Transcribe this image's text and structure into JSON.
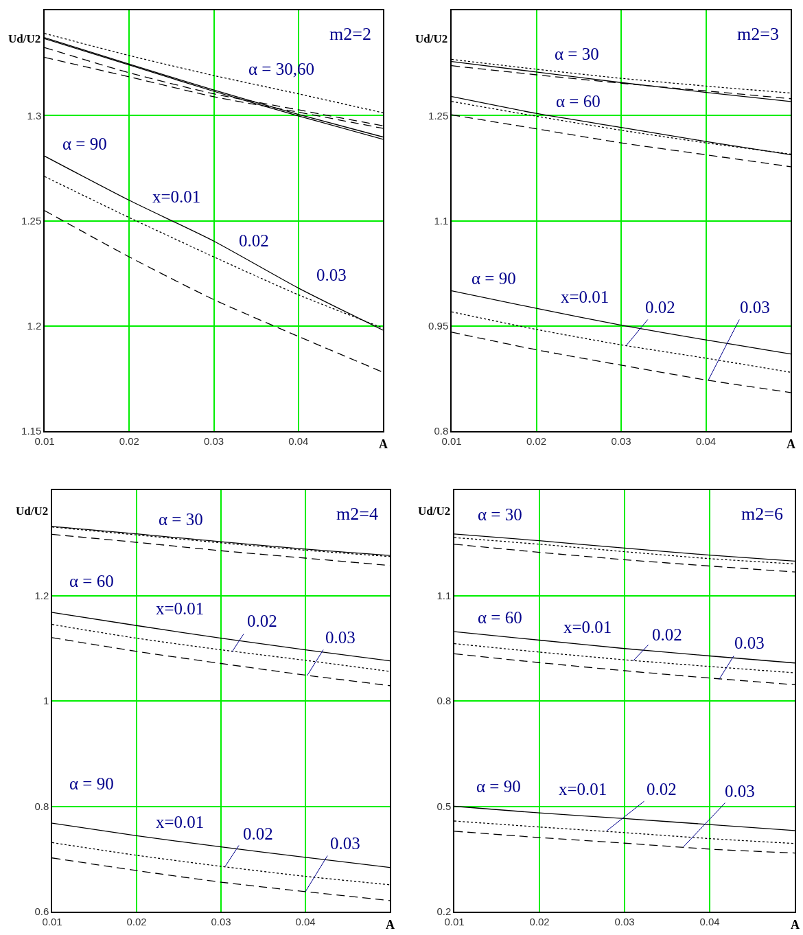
{
  "chart_data": [
    {
      "type": "line",
      "title": "m2=2",
      "xlabel": "A",
      "ylabel": "Ud/U2",
      "x": [
        0.01,
        0.02,
        0.03,
        0.04,
        0.05
      ],
      "xlim": [
        0.01,
        0.05
      ],
      "xticks": [
        0.01,
        0.02,
        0.03,
        0.04
      ],
      "ylim": [
        1.15,
        1.35
      ],
      "yticks": [
        1.15,
        1.2,
        1.25,
        1.3
      ],
      "grid": true,
      "series": [
        {
          "color": "#000000",
          "line_style": "dotted",
          "values": [
            1.339,
            1.3285,
            1.319,
            1.3103,
            1.3013
          ]
        },
        {
          "color": "#000000",
          "line_style": "solid",
          "values": [
            1.337,
            1.3244,
            1.3121,
            1.3005,
            1.2898
          ]
        },
        {
          "color": "#000000",
          "line_style": "solid",
          "values": [
            1.3365,
            1.324,
            1.3115,
            1.2998,
            1.2887
          ]
        },
        {
          "color": "#000000",
          "line_style": "dashed",
          "values": [
            1.3323,
            1.3203,
            1.3103,
            1.3027,
            1.2951
          ]
        },
        {
          "color": "#000000",
          "line_style": "dashed",
          "values": [
            1.3276,
            1.3184,
            1.3089,
            1.3016,
            1.2939
          ]
        },
        {
          "color": "#000000",
          "line_style": "solid",
          "values": [
            1.2807,
            1.2597,
            1.2403,
            1.218,
            1.198
          ]
        },
        {
          "color": "#000000",
          "line_style": "dotted",
          "values": [
            1.271,
            1.2515,
            1.2328,
            1.2148,
            1.199
          ]
        },
        {
          "color": "#000000",
          "line_style": "dashed",
          "values": [
            1.2548,
            1.2328,
            1.2125,
            1.195,
            1.178
          ]
        }
      ],
      "annotations": [
        "α = 30,60",
        "α = 90",
        "x=0.01",
        "0.02",
        "0.03"
      ]
    },
    {
      "type": "line",
      "title": "m2=3",
      "xlabel": "A",
      "ylabel": "Ud/U2",
      "x": [
        0.01,
        0.02,
        0.03,
        0.04,
        0.05
      ],
      "xlim": [
        0.01,
        0.05
      ],
      "xticks": [
        0.01,
        0.02,
        0.03,
        0.04
      ],
      "ylim": [
        0.8,
        1.4
      ],
      "yticks": [
        0.8,
        0.95,
        1.1,
        1.25
      ],
      "grid": true,
      "series": [
        {
          "color": "#000000",
          "line_style": "dotted",
          "values": [
            1.33,
            1.316,
            1.303,
            1.292,
            1.282
          ]
        },
        {
          "color": "#000000",
          "line_style": "solid",
          "values": [
            1.327,
            1.312,
            1.297,
            1.283,
            1.27
          ]
        },
        {
          "color": "#000000",
          "line_style": "dashed",
          "values": [
            1.321,
            1.308,
            1.296,
            1.285,
            1.274
          ]
        },
        {
          "color": "#000000",
          "line_style": "solid",
          "values": [
            1.277,
            1.253,
            1.233,
            1.213,
            1.194
          ]
        },
        {
          "color": "#000000",
          "line_style": "dotted",
          "values": [
            1.27,
            1.249,
            1.229,
            1.211,
            1.195
          ]
        },
        {
          "color": "#000000",
          "line_style": "dashed",
          "values": [
            1.251,
            1.231,
            1.211,
            1.194,
            1.177
          ]
        },
        {
          "color": "#000000",
          "line_style": "solid",
          "values": [
            1.0,
            0.975,
            0.951,
            0.93,
            0.91
          ]
        },
        {
          "color": "#000000",
          "line_style": "dotted",
          "values": [
            0.97,
            0.945,
            0.923,
            0.904,
            0.884
          ]
        },
        {
          "color": "#000000",
          "line_style": "dashed",
          "values": [
            0.941,
            0.916,
            0.894,
            0.873,
            0.855
          ]
        }
      ],
      "annotations": [
        "α = 30",
        "α = 60",
        "α = 90",
        "x=0.01",
        {
          "text": "0.02",
          "x": 0.0306,
          "y": 0.922
        },
        {
          "text": "0.03",
          "x": 0.0403,
          "y": 0.873
        }
      ]
    },
    {
      "type": "line",
      "title": "m2=4",
      "xlabel": "A",
      "ylabel": "Ud/U2",
      "x": [
        0.01,
        0.02,
        0.03,
        0.04,
        0.05
      ],
      "xlim": [
        0.01,
        0.05
      ],
      "xticks": [
        0.01,
        0.02,
        0.03,
        0.04
      ],
      "ylim": [
        0.6,
        1.4
      ],
      "yticks": [
        0.6,
        0.8,
        1,
        1.2
      ],
      "grid": true,
      "series": [
        {
          "color": "#000000",
          "line_style": "solid",
          "values": [
            1.331,
            1.317,
            1.302,
            1.288,
            1.276
          ]
        },
        {
          "color": "#000000",
          "line_style": "dotted",
          "values": [
            1.33,
            1.315,
            1.3,
            1.286,
            1.274
          ]
        },
        {
          "color": "#000000",
          "line_style": "dashed",
          "values": [
            1.316,
            1.301,
            1.285,
            1.271,
            1.257
          ]
        },
        {
          "color": "#000000",
          "line_style": "solid",
          "values": [
            1.168,
            1.143,
            1.119,
            1.097,
            1.076
          ]
        },
        {
          "color": "#000000",
          "line_style": "dotted",
          "values": [
            1.145,
            1.119,
            1.097,
            1.077,
            1.056
          ]
        },
        {
          "color": "#000000",
          "line_style": "dashed",
          "values": [
            1.12,
            1.094,
            1.071,
            1.049,
            1.029
          ]
        },
        {
          "color": "#000000",
          "line_style": "solid",
          "values": [
            0.768,
            0.744,
            0.723,
            0.703,
            0.684
          ]
        },
        {
          "color": "#000000",
          "line_style": "dotted",
          "values": [
            0.731,
            0.707,
            0.686,
            0.667,
            0.651
          ]
        },
        {
          "color": "#000000",
          "line_style": "dashed",
          "values": [
            0.702,
            0.678,
            0.656,
            0.638,
            0.621
          ]
        }
      ],
      "annotations": [
        "α = 30",
        "α = 60",
        "x=0.01",
        {
          "text": "0.02",
          "x": 0.0313,
          "y": 1.093
        },
        {
          "text": "0.03",
          "x": 0.0402,
          "y": 1.048
        },
        "α = 90",
        "x=0.01",
        {
          "text": "0.02",
          "x": 0.0305,
          "y": 0.686
        },
        {
          "text": "0.03",
          "x": 0.04,
          "y": 0.638
        }
      ]
    },
    {
      "type": "line",
      "title": "m2=6",
      "xlabel": "A",
      "ylabel": "Ud/U2",
      "x": [
        0.01,
        0.02,
        0.03,
        0.04,
        0.05
      ],
      "xlim": [
        0.01,
        0.05
      ],
      "xticks": [
        0.01,
        0.02,
        0.03,
        0.04
      ],
      "ylim": [
        0.2,
        1.4
      ],
      "yticks": [
        0.2,
        0.5,
        0.8,
        1.1
      ],
      "grid": true,
      "series": [
        {
          "color": "#000000",
          "line_style": "solid",
          "values": [
            1.275,
            1.256,
            1.235,
            1.215,
            1.198
          ]
        },
        {
          "color": "#000000",
          "line_style": "dotted",
          "values": [
            1.265,
            1.246,
            1.225,
            1.205,
            1.19
          ]
        },
        {
          "color": "#000000",
          "line_style": "dashed",
          "values": [
            1.246,
            1.223,
            1.202,
            1.184,
            1.167
          ]
        },
        {
          "color": "#000000",
          "line_style": "solid",
          "values": [
            0.997,
            0.973,
            0.949,
            0.928,
            0.908
          ]
        },
        {
          "color": "#000000",
          "line_style": "dotted",
          "values": [
            0.963,
            0.939,
            0.917,
            0.898,
            0.88
          ]
        },
        {
          "color": "#000000",
          "line_style": "dashed",
          "values": [
            0.934,
            0.909,
            0.886,
            0.865,
            0.846
          ]
        },
        {
          "color": "#000000",
          "line_style": "solid",
          "values": [
            0.5,
            0.481,
            0.465,
            0.448,
            0.431
          ]
        },
        {
          "color": "#000000",
          "line_style": "dotted",
          "values": [
            0.458,
            0.441,
            0.425,
            0.408,
            0.394
          ]
        },
        {
          "color": "#000000",
          "line_style": "dashed",
          "values": [
            0.429,
            0.411,
            0.395,
            0.378,
            0.367
          ]
        }
      ],
      "annotations": [
        "α = 30",
        "α = 60",
        "x=0.01",
        {
          "text": "0.02",
          "x": 0.031,
          "y": 0.914
        },
        {
          "text": "0.03",
          "x": 0.0411,
          "y": 0.861
        },
        "α = 90",
        "x=0.01",
        {
          "text": "0.02",
          "x": 0.0279,
          "y": 0.43
        },
        {
          "text": "0.03",
          "x": 0.0369,
          "y": 0.384
        }
      ]
    }
  ]
}
